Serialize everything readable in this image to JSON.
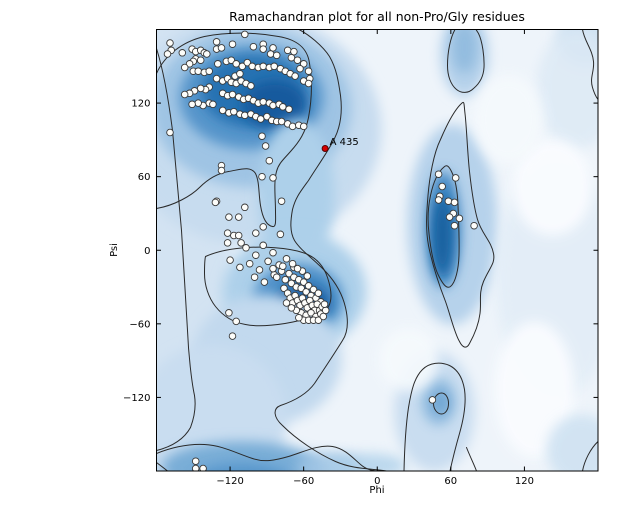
{
  "chart_data": {
    "type": "scatter",
    "title": "Ramachandran plot for all non-Pro/Gly residues",
    "xlabel": "Phi",
    "ylabel": "Psi",
    "xlim": [
      -180,
      180
    ],
    "ylim": [
      -180,
      180
    ],
    "x_tick_values": [
      -120,
      -60,
      0,
      60,
      120
    ],
    "x_tick_labels": [
      "−120",
      "−60",
      "0",
      "60",
      "120"
    ],
    "y_tick_values": [
      120,
      60,
      0,
      -60,
      -120
    ],
    "y_tick_labels": [
      "120",
      "60",
      "0",
      "−60",
      "−120"
    ],
    "grid": false,
    "legend": null,
    "colormap": "Blues",
    "plot_bg": "#eef4fa",
    "contour_color": "#2a2a2a",
    "marker": {
      "fill": "#fdfdfa",
      "edge": "#3a3a3a",
      "radius": 3.3
    },
    "outlier_marker": {
      "fill": "#d40000",
      "edge": "#550000",
      "radius": 3
    },
    "outliers": [
      {
        "label": "A 435",
        "phi": -42.5,
        "psi": 83
      }
    ],
    "points_phi_psi": [
      [
        -169,
        169
      ],
      [
        -168,
        163
      ],
      [
        -171,
        160
      ],
      [
        -159,
        161
      ],
      [
        -151,
        164
      ],
      [
        -148,
        162
      ],
      [
        -144,
        163
      ],
      [
        -141,
        161
      ],
      [
        -139,
        160
      ],
      [
        -148,
        156
      ],
      [
        -144,
        155
      ],
      [
        -150,
        154
      ],
      [
        -131,
        170
      ],
      [
        -131,
        164
      ],
      [
        -127,
        165
      ],
      [
        -118,
        168
      ],
      [
        -108,
        176
      ],
      [
        -101,
        166
      ],
      [
        -93,
        168
      ],
      [
        -93,
        164
      ],
      [
        -85,
        165
      ],
      [
        -87,
        160
      ],
      [
        -82,
        159
      ],
      [
        -73,
        163
      ],
      [
        -68,
        162
      ],
      [
        -70,
        157
      ],
      [
        -65,
        155
      ],
      [
        -60,
        152
      ],
      [
        -63,
        148
      ],
      [
        -56,
        146
      ],
      [
        -55,
        140
      ],
      [
        -60,
        138
      ],
      [
        -56,
        136
      ],
      [
        -153,
        152
      ],
      [
        -157,
        149
      ],
      [
        -150,
        146
      ],
      [
        -146,
        146
      ],
      [
        -141,
        145
      ],
      [
        -137,
        146
      ],
      [
        -130,
        152
      ],
      [
        -123,
        154
      ],
      [
        -119,
        155
      ],
      [
        -115,
        152
      ],
      [
        -110,
        150
      ],
      [
        -106,
        153
      ],
      [
        -102,
        150
      ],
      [
        -97,
        149
      ],
      [
        -93,
        150
      ],
      [
        -88,
        149
      ],
      [
        -84,
        150
      ],
      [
        -79,
        148
      ],
      [
        -75,
        146
      ],
      [
        -71,
        144
      ],
      [
        -67,
        142
      ],
      [
        -131,
        140
      ],
      [
        -126,
        138
      ],
      [
        -122,
        140
      ],
      [
        -119,
        137
      ],
      [
        -115,
        136
      ],
      [
        -111,
        138
      ],
      [
        -107,
        136
      ],
      [
        -103,
        134
      ],
      [
        -116,
        142
      ],
      [
        -112,
        144
      ],
      [
        -137,
        133
      ],
      [
        -140,
        131
      ],
      [
        -144,
        132
      ],
      [
        -149,
        130
      ],
      [
        -153,
        128
      ],
      [
        -157,
        127
      ],
      [
        -126,
        128
      ],
      [
        -122,
        126
      ],
      [
        -118,
        127
      ],
      [
        -113,
        125
      ],
      [
        -109,
        123
      ],
      [
        -105,
        124
      ],
      [
        -101,
        122
      ],
      [
        -97,
        120
      ],
      [
        -93,
        121
      ],
      [
        -88,
        120
      ],
      [
        -85,
        118
      ],
      [
        -80,
        119
      ],
      [
        -77,
        117
      ],
      [
        -72,
        115
      ],
      [
        -137,
        120
      ],
      [
        -134,
        119
      ],
      [
        -142,
        118
      ],
      [
        -146,
        120
      ],
      [
        -151,
        119
      ],
      [
        -126,
        114
      ],
      [
        -121,
        112
      ],
      [
        -117,
        113
      ],
      [
        -112,
        111
      ],
      [
        -108,
        110
      ],
      [
        -103,
        111
      ],
      [
        -99,
        109
      ],
      [
        -95,
        107
      ],
      [
        -90,
        109
      ],
      [
        -86,
        106
      ],
      [
        -82,
        105
      ],
      [
        -78,
        105
      ],
      [
        -73,
        103
      ],
      [
        -69,
        101
      ],
      [
        -64,
        102
      ],
      [
        -60,
        101
      ],
      [
        -169,
        96
      ],
      [
        -94,
        93
      ],
      [
        -91,
        85
      ],
      [
        -127,
        69
      ],
      [
        -127,
        65
      ],
      [
        -94,
        60
      ],
      [
        -85,
        59
      ],
      [
        -88,
        73
      ],
      [
        -78,
        40
      ],
      [
        -131,
        40
      ],
      [
        -132,
        39
      ],
      [
        -121,
        27
      ],
      [
        -113,
        27
      ],
      [
        -108,
        35
      ],
      [
        -117,
        12
      ],
      [
        -122,
        14
      ],
      [
        -113,
        12
      ],
      [
        -99,
        14
      ],
      [
        -79,
        13
      ],
      [
        -93,
        19
      ],
      [
        -122,
        6
      ],
      [
        -111,
        6
      ],
      [
        -107,
        2
      ],
      [
        -99,
        -4
      ],
      [
        -93,
        4
      ],
      [
        -85,
        -2
      ],
      [
        -120,
        -8
      ],
      [
        -112,
        -14
      ],
      [
        -104,
        -11
      ],
      [
        -96,
        -16
      ],
      [
        -89,
        -9
      ],
      [
        -80,
        -12
      ],
      [
        -74,
        -7
      ],
      [
        -68,
        -14
      ],
      [
        -100,
        -22
      ],
      [
        -92,
        -26
      ],
      [
        -84,
        -20
      ],
      [
        -121,
        -51
      ],
      [
        -115,
        -58
      ],
      [
        -118,
        -70
      ],
      [
        -82,
        -22
      ],
      [
        -78,
        -17
      ],
      [
        -75,
        -24
      ],
      [
        -72,
        -19
      ],
      [
        -70,
        -27
      ],
      [
        -68,
        -22
      ],
      [
        -66,
        -30
      ],
      [
        -64,
        -24
      ],
      [
        -62,
        -31
      ],
      [
        -60,
        -26
      ],
      [
        -58,
        -34
      ],
      [
        -56,
        -29
      ],
      [
        -54,
        -37
      ],
      [
        -52,
        -32
      ],
      [
        -50,
        -39
      ],
      [
        -48,
        -35
      ],
      [
        -46,
        -42
      ],
      [
        -76,
        -31
      ],
      [
        -73,
        -35
      ],
      [
        -71,
        -39
      ],
      [
        -69,
        -43
      ],
      [
        -67,
        -37
      ],
      [
        -65,
        -41
      ],
      [
        -63,
        -45
      ],
      [
        -61,
        -39
      ],
      [
        -59,
        -43
      ],
      [
        -57,
        -47
      ],
      [
        -55,
        -41
      ],
      [
        -53,
        -45
      ],
      [
        -51,
        -49
      ],
      [
        -49,
        -44
      ],
      [
        -47,
        -49
      ],
      [
        -45,
        -46
      ],
      [
        -62,
        -51
      ],
      [
        -58,
        -53
      ],
      [
        -54,
        -51
      ],
      [
        -50,
        -54
      ],
      [
        -46,
        -52
      ],
      [
        -66,
        -49
      ],
      [
        -70,
        -47
      ],
      [
        -74,
        -43
      ],
      [
        -60,
        -57
      ],
      [
        -56,
        -57
      ],
      [
        -52,
        -57
      ],
      [
        -48,
        -57
      ],
      [
        -64,
        -55
      ],
      [
        -44,
        -54
      ],
      [
        -42,
        -49
      ],
      [
        -43,
        -44
      ],
      [
        -57,
        -21
      ],
      [
        -61,
        -17
      ],
      [
        -65,
        -15
      ],
      [
        -69,
        -11
      ],
      [
        -77,
        -13
      ],
      [
        -85,
        -15
      ],
      [
        50,
        62
      ],
      [
        64,
        59
      ],
      [
        53,
        52
      ],
      [
        51,
        44
      ],
      [
        50,
        41
      ],
      [
        58,
        40
      ],
      [
        63,
        39
      ],
      [
        62,
        30
      ],
      [
        59,
        27
      ],
      [
        67,
        26
      ],
      [
        63,
        20
      ],
      [
        79,
        20
      ],
      [
        45,
        -122
      ],
      [
        -148,
        -172
      ],
      [
        -148,
        -178
      ],
      [
        -142,
        -178
      ]
    ],
    "density_blobs": [
      [
        "#d3e3f2",
        1.0,
        20,
        210,
        55,
        270
      ],
      [
        "#c7dcef",
        1.0,
        95,
        100,
        130,
        115
      ],
      [
        "#9fc4e4",
        1.0,
        95,
        78,
        100,
        80
      ],
      [
        "#5795cb",
        1.0,
        95,
        68,
        72,
        52
      ],
      [
        "#2572b2",
        1.0,
        97,
        62,
        52,
        36
      ],
      [
        "#135a9e",
        1.0,
        118,
        75,
        32,
        24
      ],
      [
        "#add0ea",
        1.0,
        140,
        165,
        38,
        75
      ],
      [
        "#add0ea",
        1.0,
        138,
        262,
        72,
        60
      ],
      [
        "#4f91c9",
        1.0,
        142,
        270,
        45,
        36
      ],
      [
        "#135a9e",
        1.0,
        146,
        274,
        27,
        20
      ],
      [
        "#c2d9ee",
        1.0,
        110,
        330,
        75,
        65
      ],
      [
        "#c9ddf0",
        1.0,
        55,
        390,
        75,
        75
      ],
      [
        "#79add7",
        1.0,
        85,
        438,
        80,
        26
      ],
      [
        "#4f91c9",
        0.8,
        85,
        450,
        48,
        16
      ],
      [
        "#9fc4e4",
        0.9,
        172,
        438,
        32,
        15
      ],
      [
        "#add0ea",
        0.8,
        210,
        436,
        40,
        12
      ],
      [
        "#b6d2eb",
        1.0,
        296,
        195,
        45,
        100
      ],
      [
        "#3f86c3",
        1.0,
        287,
        200,
        17,
        58
      ],
      [
        "#16619f",
        1.0,
        286,
        206,
        10,
        40
      ],
      [
        "#b6d2eb",
        1.0,
        308,
        25,
        24,
        42
      ],
      [
        "#8fbade",
        0.9,
        308,
        18,
        13,
        26
      ],
      [
        "#c9ddf0",
        1.0,
        278,
        382,
        40,
        60
      ],
      [
        "#8fbade",
        0.9,
        282,
        372,
        17,
        24
      ],
      [
        "#6ba3d2",
        0.9,
        284,
        373,
        9,
        12
      ],
      [
        "#cfe2f2",
        1.0,
        430,
        8,
        30,
        28
      ],
      [
        "#dce9f5",
        0.8,
        420,
        60,
        40,
        60
      ],
      [
        "#e2edf7",
        0.9,
        400,
        250,
        60,
        120
      ],
      [
        "#fafcff",
        0.95,
        396,
        158,
        40,
        48
      ],
      [
        "#fafcff",
        0.95,
        378,
        360,
        40,
        68
      ],
      [
        "#f6fafd",
        0.9,
        252,
        330,
        30,
        32
      ],
      [
        "#f6fafd",
        0.85,
        352,
        90,
        35,
        45
      ],
      [
        "#cfe2f2",
        0.9,
        425,
        420,
        35,
        35
      ]
    ],
    "contour_paths": [
      "M 0,44 C 8,26 26,12 48,7 C 72,2 100,3 122,7 C 140,10 151,18 153,34 C 156,52 155,72 152,88 C 149,103 143,112 134,122 C 127,130 122,134 120,142 C 117,153 119,168 119,182 C 119,190 120,198 116,197 C 110,196 106,188 104,176 C 102,164 103,152 99,144 C 94,136 84,140 72,142 C 60,144 51,150 43,158 C 35,166 18,176 0,179",
      "M 49,227 C 60,222 76,219 91,218 C 106,217 131,218 146,223 C 159,227 167,236 171,248 C 175,260 176,270 172,277 C 167,285 155,289 143,291 C 127,295 103,298 89,295 C 77,293 67,287 59,277 C 52,268 48,256 48,244 C 48,238 48,231 49,227 Z",
      "M 0,19 C 6,38 12,70 16,101 C 19,131 22,170 25,201 C 27,231 29,270 31,301 C 32,325 35,352 38,366 C 40,379 37,390 34,398 C 29,407 20,416 0,421",
      "M 0,424 C 12,419 30,414 48,415 C 66,416 78,423 96,429 C 108,433 118,431 132,427 C 148,422 162,415 176,417 C 188,419 196,428 204,435 C 210,440 215,441 220,441.5",
      "M 142.5,0 C 152,5 166,16 173,27 C 180,39 182,52 184,66 C 186,82 184,97 178,109 C 171,123 160,138 152,151 C 144,162 139,168 136,180 C 134,191 133,202 138,211 C 145,222 157,229 170,243 C 180,254 186,265 189,278 C 192,291 192,302 186,311 C 178,324 166,342 158,354 C 150,365 136,372 124,376 C 116,379 117,388 126,396 C 140,410 161,424 179,432 C 197,440 216,439 230,441.5",
      "M 298.5,0 C 294,8 291,22 291,36 C 291,46 294,55 300,60 C 305,64 312,64 317,59 C 323,54 327,47 327.5,38 C 328,28 326,12 322,4 L 319.5,0",
      "M 305.5,73.5 C 298,80 290,96 284,110 C 277,124 273,148 271.5,166 C 270,184 269,200 272,216 C 276,236 282,254 289,272 C 294,286 298,304 303,312 C 306,318 310,320 313,314 C 318,305 322,296 323.5,284 C 325,272 322,264 327,252 C 333,238 339,234 337,224 C 335,212 325,204 321,190 C 317,176 315,160 313,142 C 311,124 310,96 308.5,84 C 307.5,76 308,71 305.5,73.5 Z",
      "M 287.5,137.5 C 282,142 277,152 274,166 C 271,180 271,192 272.5,204 C 274,218 277,236 282,246 C 286,254 290,260 294,257 C 299,253 302,240 302.5,226 C 303,208 302,190 301.5,176 C 301,162 299,150 295,142 C 292,136 290,135 287.5,137.5 Z",
      "M 247.5,441.5 C 248,420 249,398 252,378 C 255,360 258,348 266,340 C 273,333 284,332 293,336 C 301,340 306,348 308,360 C 310,374 307,390 303,404 C 299,418 296,430 293.5,441.5",
      "M 277,374 C 277,368 281,363.5 285,363.5 C 289,363.5 292,368 292,374 C 292,380 289,384.5 285,384.5 C 281,384.5 277,380 277,374 Z",
      "M 426,0 C 428,12 436,20 437,32 C 438,42 433,48 436,58 C 438,65 440,68 441.5,70",
      "M 0,433 C 4,436 8,439 11,441.5",
      "M 310,418 C 314,428 318,436 320,441.5",
      "M 441.5,412 C 434,419 428,431 426,441.5"
    ]
  }
}
